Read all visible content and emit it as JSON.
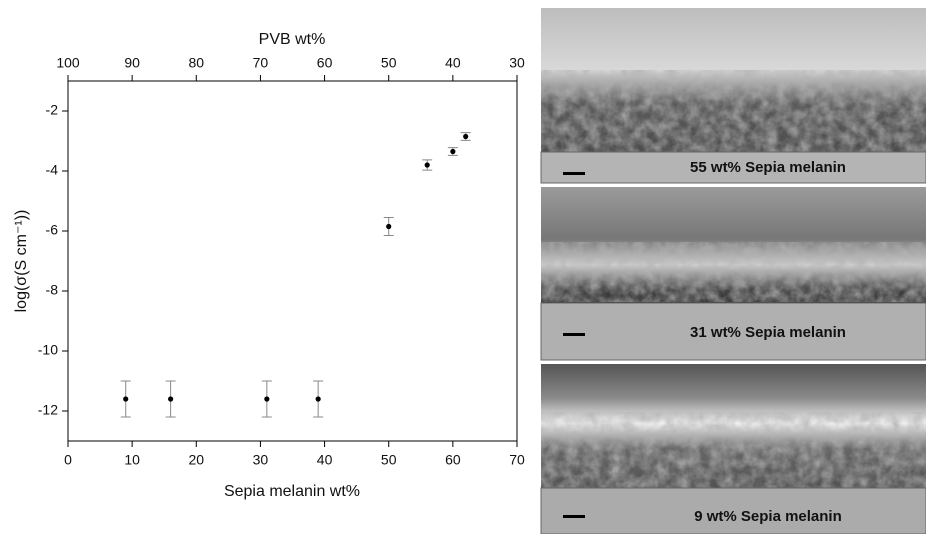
{
  "chart_data": {
    "type": "scatter",
    "x_label": "Sepia melanin wt%",
    "x2_label": "PVB wt%",
    "y_label": "log(σ(S cm⁻¹))",
    "x": [
      9,
      16,
      31,
      39,
      50,
      56,
      60,
      62
    ],
    "y": [
      -11.6,
      -11.6,
      -11.6,
      -11.6,
      -5.85,
      -3.8,
      -3.35,
      -2.85
    ],
    "errors": [
      0.6,
      0.6,
      0.6,
      0.6,
      0.3,
      0.17,
      0.13,
      0.13
    ],
    "color": "#000000",
    "error_color": "#888888",
    "xlim": [
      0,
      70
    ],
    "xticks": [
      0,
      10,
      20,
      30,
      40,
      50,
      60,
      70
    ],
    "x2lim": [
      100,
      30
    ],
    "x2ticks": [
      100,
      90,
      80,
      70,
      60,
      50,
      40,
      30
    ],
    "ylim": [
      -13,
      -1
    ],
    "yticks": [
      -12,
      -10,
      -8,
      -6,
      -4,
      -2
    ]
  },
  "images": [
    {
      "label": "55 wt% Sepia melanin"
    },
    {
      "label": "31 wt% Sepia melanin"
    },
    {
      "label": "9 wt% Sepia melanin"
    }
  ]
}
